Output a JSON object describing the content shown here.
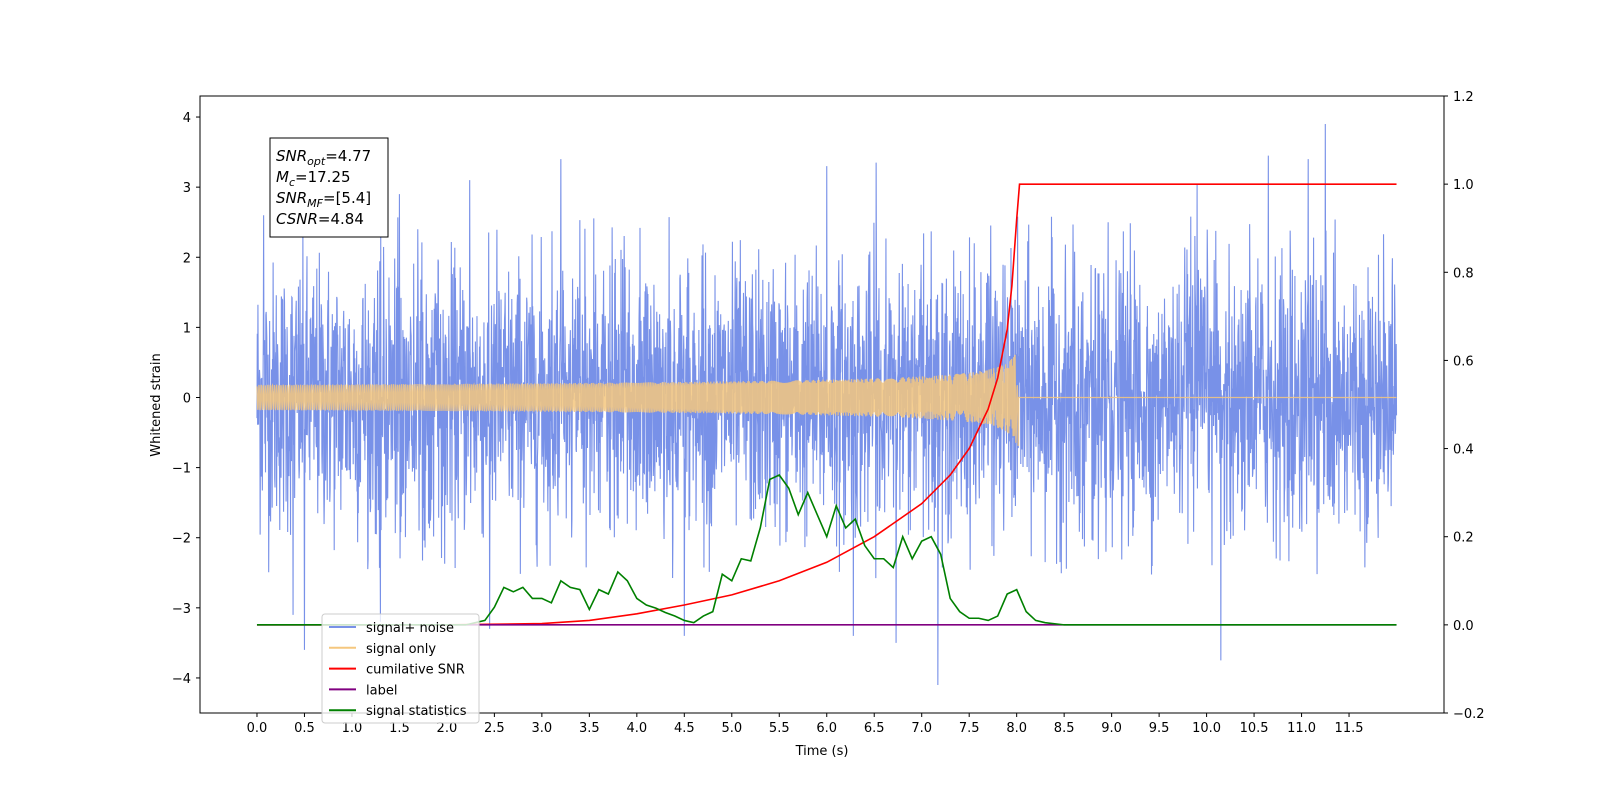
{
  "chart_data": {
    "type": "line",
    "xlabel": "Time (s)",
    "ylabel": "Whitened strain",
    "xlim": [
      -0.6,
      12.5
    ],
    "ylim": [
      -4.5,
      4.3
    ],
    "y2lim": [
      -0.2,
      1.2
    ],
    "x_ticks": [
      "0.0",
      "0.5",
      "1.0",
      "1.5",
      "2.0",
      "2.5",
      "3.0",
      "3.5",
      "4.0",
      "4.5",
      "5.0",
      "5.5",
      "6.0",
      "6.5",
      "7.0",
      "7.5",
      "8.0",
      "8.5",
      "9.0",
      "9.5",
      "10.0",
      "10.5",
      "11.0",
      "11.5"
    ],
    "y_ticks": [
      "4",
      "3",
      "2",
      "1",
      "0",
      "−1",
      "−2",
      "−3",
      "−4"
    ],
    "y2_ticks": [
      "1.2",
      "1.0",
      "0.8",
      "0.6",
      "0.4",
      "0.2",
      "0.0",
      "−0.2"
    ],
    "grid": false,
    "legend_position": "lower-left",
    "info_box": {
      "lines": [
        {
          "main": "SNR",
          "sub": "opt",
          "rest": "=4.77"
        },
        {
          "main": "M",
          "sub": "c",
          "rest": "=17.25"
        },
        {
          "main": "SNR",
          "sub": "MF",
          "rest": "=[5.4]"
        },
        {
          "main": "CSNR",
          "sub": "",
          "rest": "=4.84"
        }
      ]
    },
    "series": [
      {
        "name": "signal+ noise",
        "color": "#7891e8",
        "axis": "left",
        "kind": "noise",
        "x_range": [
          0.0,
          12.0
        ],
        "typical_amplitude": 2.3,
        "peaks": [
          {
            "x": 0.07,
            "y": 2.6
          },
          {
            "x": 0.38,
            "y": -3.1
          },
          {
            "x": 0.5,
            "y": -3.6
          },
          {
            "x": 1.3,
            "y": -3.2
          },
          {
            "x": 1.5,
            "y": 2.9
          },
          {
            "x": 2.24,
            "y": 3.1
          },
          {
            "x": 2.45,
            "y": -3.3
          },
          {
            "x": 3.2,
            "y": 3.4
          },
          {
            "x": 4.5,
            "y": -3.4
          },
          {
            "x": 6.0,
            "y": 3.3
          },
          {
            "x": 6.28,
            "y": -3.4
          },
          {
            "x": 6.52,
            "y": 3.35
          },
          {
            "x": 6.73,
            "y": -3.5
          },
          {
            "x": 7.17,
            "y": -4.1
          },
          {
            "x": 9.9,
            "y": 3.05
          },
          {
            "x": 10.15,
            "y": -3.75
          },
          {
            "x": 10.65,
            "y": 3.45
          },
          {
            "x": 11.07,
            "y": 3.4
          },
          {
            "x": 11.25,
            "y": 3.9
          }
        ]
      },
      {
        "name": "signal only",
        "color": "#f5c77e",
        "axis": "left",
        "kind": "chirp",
        "x_range": [
          0.0,
          12.0
        ],
        "merger_time": 8.02,
        "peak_amplitude": 0.9
      },
      {
        "name": "cumilative SNR",
        "color": "#ff0000",
        "axis": "right",
        "x": [
          0.0,
          2.0,
          3.0,
          3.5,
          4.0,
          4.5,
          5.0,
          5.5,
          6.0,
          6.5,
          7.0,
          7.3,
          7.5,
          7.7,
          7.8,
          7.9,
          7.95,
          8.0,
          8.03,
          12.0
        ],
        "y": [
          0.0,
          0.0,
          0.003,
          0.01,
          0.025,
          0.045,
          0.068,
          0.1,
          0.142,
          0.2,
          0.275,
          0.34,
          0.4,
          0.49,
          0.56,
          0.67,
          0.77,
          0.92,
          1.0,
          1.0
        ]
      },
      {
        "name": "label",
        "color": "#800080",
        "axis": "right",
        "x": [
          0.0,
          12.0
        ],
        "y": [
          0.0,
          0.0
        ]
      },
      {
        "name": "signal statistics",
        "color": "#008000",
        "axis": "right",
        "x": [
          0.0,
          2.2,
          2.3,
          2.4,
          2.5,
          2.6,
          2.7,
          2.8,
          2.9,
          3.0,
          3.1,
          3.2,
          3.3,
          3.4,
          3.5,
          3.6,
          3.7,
          3.8,
          3.9,
          4.0,
          4.1,
          4.2,
          4.3,
          4.4,
          4.5,
          4.6,
          4.7,
          4.8,
          4.9,
          5.0,
          5.1,
          5.2,
          5.3,
          5.4,
          5.5,
          5.6,
          5.7,
          5.8,
          5.9,
          6.0,
          6.1,
          6.2,
          6.3,
          6.4,
          6.5,
          6.6,
          6.7,
          6.8,
          6.9,
          7.0,
          7.1,
          7.2,
          7.3,
          7.4,
          7.5,
          7.6,
          7.7,
          7.8,
          7.9,
          8.0,
          8.1,
          8.2,
          8.3,
          8.5,
          9.0,
          12.0
        ],
        "y": [
          0.0,
          0.0,
          0.005,
          0.01,
          0.04,
          0.085,
          0.075,
          0.085,
          0.06,
          0.06,
          0.05,
          0.1,
          0.085,
          0.08,
          0.035,
          0.08,
          0.07,
          0.12,
          0.1,
          0.06,
          0.045,
          0.038,
          0.028,
          0.02,
          0.01,
          0.005,
          0.02,
          0.03,
          0.115,
          0.1,
          0.15,
          0.145,
          0.22,
          0.33,
          0.34,
          0.31,
          0.25,
          0.3,
          0.25,
          0.2,
          0.27,
          0.22,
          0.24,
          0.18,
          0.15,
          0.15,
          0.13,
          0.2,
          0.15,
          0.19,
          0.2,
          0.16,
          0.06,
          0.03,
          0.015,
          0.015,
          0.01,
          0.02,
          0.07,
          0.08,
          0.03,
          0.01,
          0.005,
          0.0,
          0.0,
          0.0
        ]
      }
    ],
    "legend_entries": [
      {
        "label": "signal+ noise",
        "color": "#7891e8"
      },
      {
        "label": "signal only",
        "color": "#f5c77e"
      },
      {
        "label": "cumilative SNR",
        "color": "#ff0000"
      },
      {
        "label": "label",
        "color": "#800080"
      },
      {
        "label": "signal statistics",
        "color": "#008000"
      }
    ]
  }
}
